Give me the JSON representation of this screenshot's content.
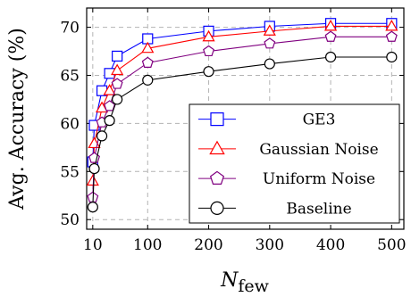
{
  "chart_data": {
    "type": "line",
    "xlabel_main": "N",
    "xlabel_sub": "few",
    "ylabel": "Avg. Accuracy (%)",
    "x": [
      10,
      12.5,
      25,
      37.5,
      50,
      100,
      200,
      300,
      400,
      500
    ],
    "xlim": [
      0,
      520
    ],
    "ylim": [
      49,
      72
    ],
    "xticks": [
      10,
      100,
      200,
      300,
      400,
      500
    ],
    "yticks": [
      50,
      55,
      60,
      65,
      70
    ],
    "grid": true,
    "legend_position": "bottom-right",
    "series": [
      {
        "name": "GE3",
        "color": "#0000ff",
        "marker": "square",
        "values": [
          56.0,
          59.8,
          63.4,
          65.2,
          67.0,
          68.8,
          69.6,
          70.1,
          70.4,
          70.4
        ]
      },
      {
        "name": "Gaussian Noise",
        "color": "#ff0000",
        "marker": "triangle",
        "values": [
          54.0,
          57.9,
          61.6,
          63.4,
          65.5,
          67.8,
          69.0,
          69.6,
          70.1,
          70.1
        ]
      },
      {
        "name": "Uniform Noise",
        "color": "#800080",
        "marker": "pentagon",
        "values": [
          52.3,
          56.4,
          60.1,
          61.8,
          64.1,
          66.3,
          67.5,
          68.3,
          69.0,
          69.0
        ]
      },
      {
        "name": "Baseline",
        "color": "#000000",
        "marker": "circle",
        "values": [
          51.3,
          55.3,
          58.7,
          60.3,
          62.5,
          64.5,
          65.4,
          66.2,
          66.9,
          66.9
        ]
      }
    ]
  }
}
